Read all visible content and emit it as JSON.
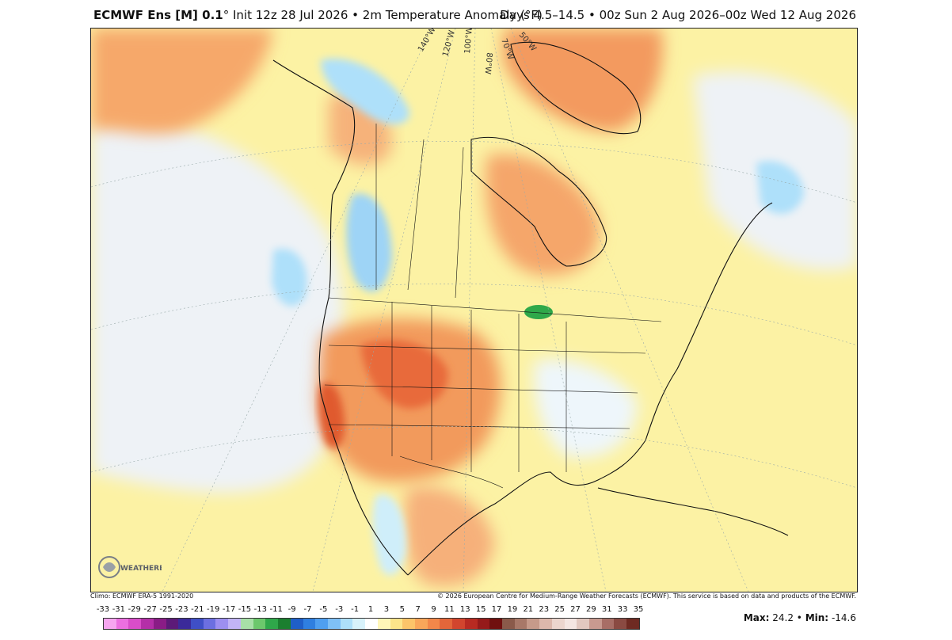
{
  "header": {
    "model": "ECMWF Ens [M] 0.1",
    "degree": "°",
    "init": "Init 12z 28 Jul 2026",
    "separator": "•",
    "variable": "2m Temperature Anomaly (°F)",
    "days": "Days 4.5–14.5",
    "range": "00z Sun 2 Aug 2026–00z Wed 12 Aug 2026"
  },
  "map": {
    "longitude_labels": [
      "140°W",
      "120°W",
      "100°W",
      "80°W",
      "70°W",
      "50°W"
    ],
    "logo_text": "WEATHERBELL"
  },
  "footer": {
    "climo": "Climo: ECMWF ERA-5 1991-2020",
    "copyright": "© 2026 European Centre for Medium-Range Weather Forecasts (ECMWF). This service is based on data and products of the ECMWF."
  },
  "legend": {
    "labels": [
      "-33",
      "-31",
      "-29",
      "-27",
      "-25",
      "-23",
      "-21",
      "-19",
      "-17",
      "-15",
      "-13",
      "-11",
      "-9",
      "-7",
      "-5",
      "-3",
      "-1",
      "1",
      "3",
      "5",
      "7",
      "9",
      "11",
      "13",
      "15",
      "17",
      "19",
      "21",
      "23",
      "25",
      "27",
      "29",
      "31",
      "33",
      "35"
    ],
    "colors": [
      "#f7a6f0",
      "#ec6fe0",
      "#d94dc9",
      "#b42fa8",
      "#8a1c86",
      "#5c1a78",
      "#3b2a9a",
      "#3f4fc6",
      "#6c6fe0",
      "#9d8ff0",
      "#c2b4f6",
      "#a8e0a8",
      "#6cc86c",
      "#2fa84a",
      "#1b7f2f",
      "#1f5fc8",
      "#2f7fe0",
      "#4f9ff0",
      "#7fc0f6",
      "#aee0fa",
      "#d8f2fb",
      "#ffffff",
      "#fff6b8",
      "#fde48a",
      "#fcc46a",
      "#f9a65a",
      "#f2874a",
      "#e4663a",
      "#d2452e",
      "#b82a22",
      "#961a1a",
      "#70100f",
      "#8a5a4a",
      "#a87868",
      "#c69a8a",
      "#dcb8ac",
      "#ecd6ce",
      "#f4e6e2",
      "#e2c8c0",
      "#c89a90",
      "#a86e66",
      "#8a4a42",
      "#6e2a22"
    ],
    "max_label": "Max:",
    "max_value": "24.2",
    "min_label": "Min:",
    "min_value": "-14.6",
    "bullet": "•"
  }
}
